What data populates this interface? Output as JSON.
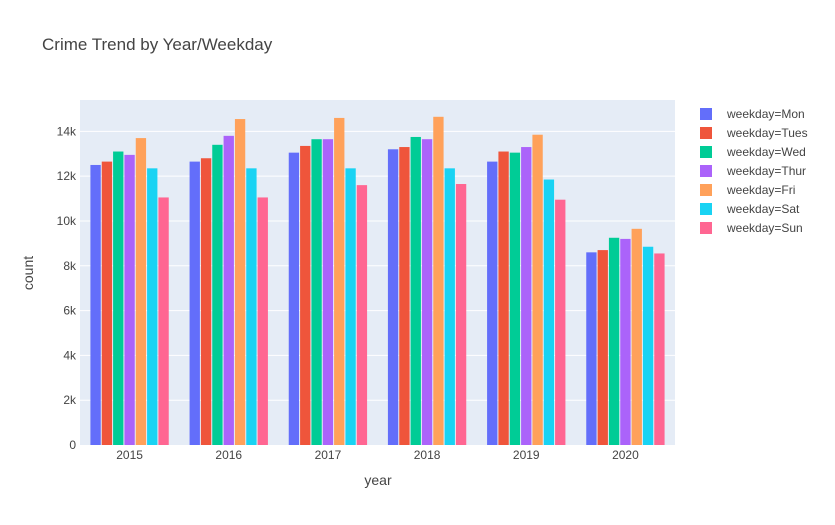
{
  "chart_data": {
    "type": "bar",
    "title": "Crime Trend by Year/Weekday",
    "xlabel": "year",
    "ylabel": "count",
    "categories": [
      "2015",
      "2016",
      "2017",
      "2018",
      "2019",
      "2020"
    ],
    "ylim": [
      0,
      15400
    ],
    "yticks": [
      0,
      2000,
      4000,
      6000,
      8000,
      10000,
      12000,
      14000
    ],
    "ytick_labels": [
      "0",
      "2k",
      "4k",
      "6k",
      "8k",
      "10k",
      "12k",
      "14k"
    ],
    "grid": true,
    "legend_position": "right",
    "series": [
      {
        "name": "weekday=Mon",
        "color": "#636efa",
        "values": [
          12500,
          12650,
          13050,
          13200,
          12650,
          8600
        ]
      },
      {
        "name": "weekday=Tues",
        "color": "#ef553b",
        "values": [
          12650,
          12800,
          13350,
          13300,
          13100,
          8700
        ]
      },
      {
        "name": "weekday=Wed",
        "color": "#00cc96",
        "values": [
          13100,
          13400,
          13650,
          13750,
          13050,
          9250
        ]
      },
      {
        "name": "weekday=Thur",
        "color": "#ab63fa",
        "values": [
          12950,
          13800,
          13650,
          13650,
          13300,
          9200
        ]
      },
      {
        "name": "weekday=Fri",
        "color": "#ffa15a",
        "values": [
          13700,
          14550,
          14600,
          14650,
          13850,
          9650
        ]
      },
      {
        "name": "weekday=Sat",
        "color": "#19d3f3",
        "values": [
          12350,
          12350,
          12350,
          12350,
          11850,
          8850
        ]
      },
      {
        "name": "weekday=Sun",
        "color": "#ff6692",
        "values": [
          11050,
          11050,
          11600,
          11650,
          10950,
          8550
        ]
      }
    ],
    "plot_background": "#e5ecf6"
  }
}
